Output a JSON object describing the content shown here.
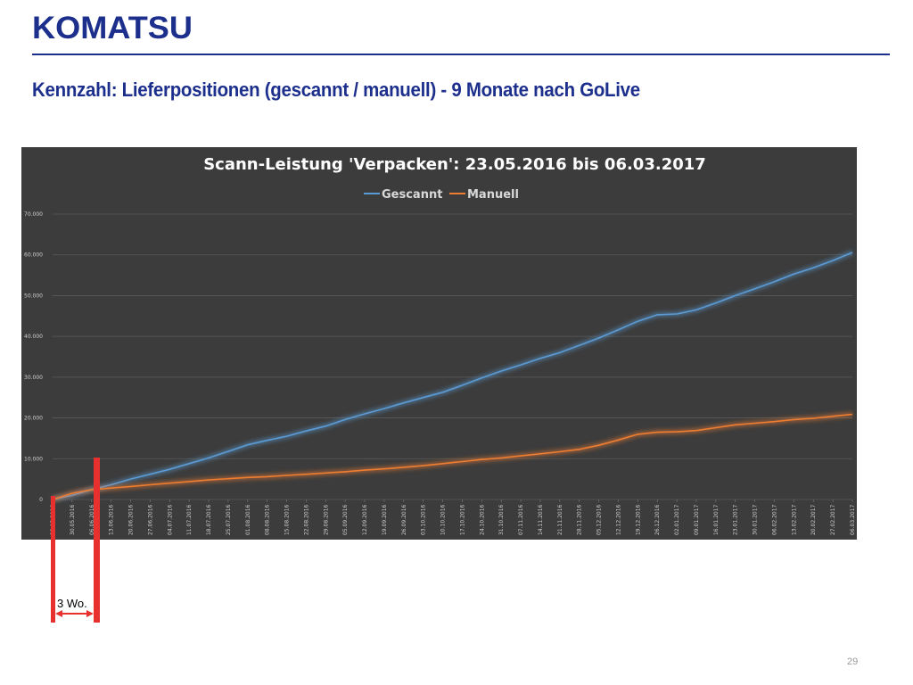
{
  "logo": {
    "text": "KOMATSU",
    "color": "#1c2f8c"
  },
  "slide": {
    "title": "Kennzahl: Lieferpositionen (gescannt / manuell)  -  9 Monate nach GoLive",
    "page_number": "29",
    "annotation_label": "3 Wo.",
    "colors": {
      "accent": "#1c2f8c",
      "marker": "#e8302e"
    }
  },
  "chart_data": {
    "type": "line",
    "title": "Scann-Leistung 'Verpacken':   23.05.2016    bis    06.03.2017",
    "background": "#3c3c3c",
    "grid": true,
    "legend_position": "top-center",
    "ylim": [
      0,
      70000
    ],
    "y_ticks": [
      "0",
      "10.000",
      "20.000",
      "30.000",
      "40.000",
      "50.000",
      "60.000",
      "70.000"
    ],
    "x_tick_labels": [
      "23.05.2016",
      "30.05.2016",
      "06.06.2016",
      "13.06.2016",
      "20.06.2016",
      "27.06.2016",
      "04.07.2016",
      "11.07.2016",
      "18.07.2016",
      "25.07.2016",
      "01.08.2016",
      "08.08.2016",
      "15.08.2016",
      "22.08.2016",
      "29.08.2016",
      "05.09.2016",
      "12.09.2016",
      "19.09.2016",
      "26.09.2016",
      "03.10.2016",
      "10.10.2016",
      "17.10.2016",
      "24.10.2016",
      "31.10.2016",
      "07.11.2016",
      "14.11.2016",
      "21.11.2016",
      "28.11.2016",
      "05.12.2016",
      "12.12.2016",
      "19.12.2016",
      "26.12.2016",
      "02.01.2017",
      "09.01.2017",
      "16.01.2017",
      "23.01.2017",
      "30.01.2017",
      "06.02.2017",
      "13.02.2017",
      "20.02.2017",
      "27.02.2017",
      "06.03.2017"
    ],
    "series": [
      {
        "name": "Gescannt",
        "color": "#5b9bd5",
        "values": [
          0,
          1000,
          2400,
          3600,
          5000,
          6200,
          7400,
          8800,
          10200,
          11800,
          13400,
          14500,
          15500,
          16800,
          18000,
          19600,
          21000,
          22300,
          23700,
          25000,
          26300,
          28000,
          29800,
          31500,
          33000,
          34600,
          36000,
          37800,
          39600,
          41600,
          43700,
          45300,
          45500,
          46500,
          48200,
          50000,
          51700,
          53400,
          55300,
          56800,
          58600,
          60600
        ]
      },
      {
        "name": "Manuell",
        "color": "#ed7d31",
        "values": [
          0,
          1500,
          2400,
          2800,
          3200,
          3600,
          4000,
          4400,
          4800,
          5100,
          5400,
          5600,
          5900,
          6200,
          6500,
          6800,
          7200,
          7500,
          7900,
          8300,
          8800,
          9300,
          9800,
          10200,
          10700,
          11200,
          11700,
          12300,
          13300,
          14600,
          16000,
          16500,
          16600,
          16900,
          17600,
          18300,
          18700,
          19100,
          19600,
          19900,
          20400,
          20900
        ]
      }
    ]
  }
}
